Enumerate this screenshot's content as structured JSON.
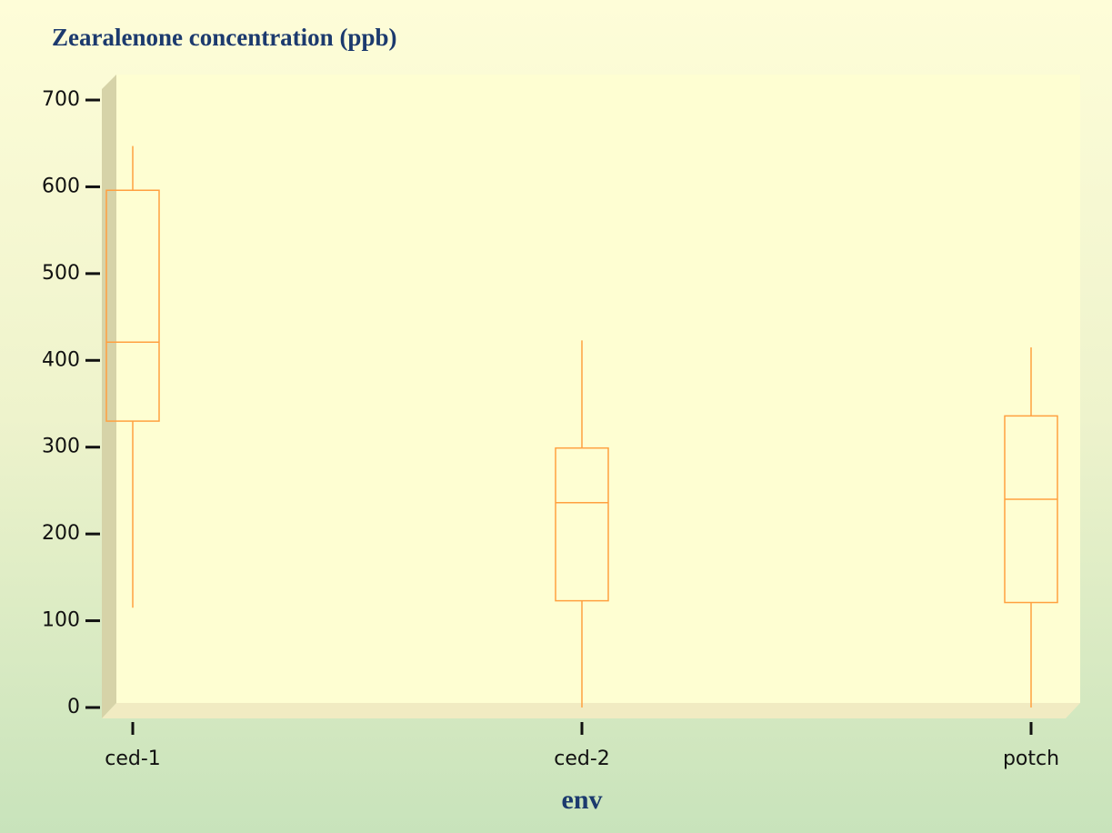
{
  "chart_data": {
    "type": "box",
    "title": "Zearalenone concentration (ppb)",
    "x_label": "env",
    "categories": [
      "ced-1",
      "ced-2",
      "potch"
    ],
    "min": [
      115,
      0,
      0
    ],
    "q1": [
      330,
      123,
      121
    ],
    "median": [
      421,
      236,
      240
    ],
    "q3": [
      596,
      299,
      336
    ],
    "max": [
      647,
      423,
      415
    ],
    "color": "#ffa040",
    "ylim": [
      0,
      700
    ],
    "yticks": [
      0,
      100,
      200,
      300,
      400,
      500,
      600,
      700
    ]
  }
}
